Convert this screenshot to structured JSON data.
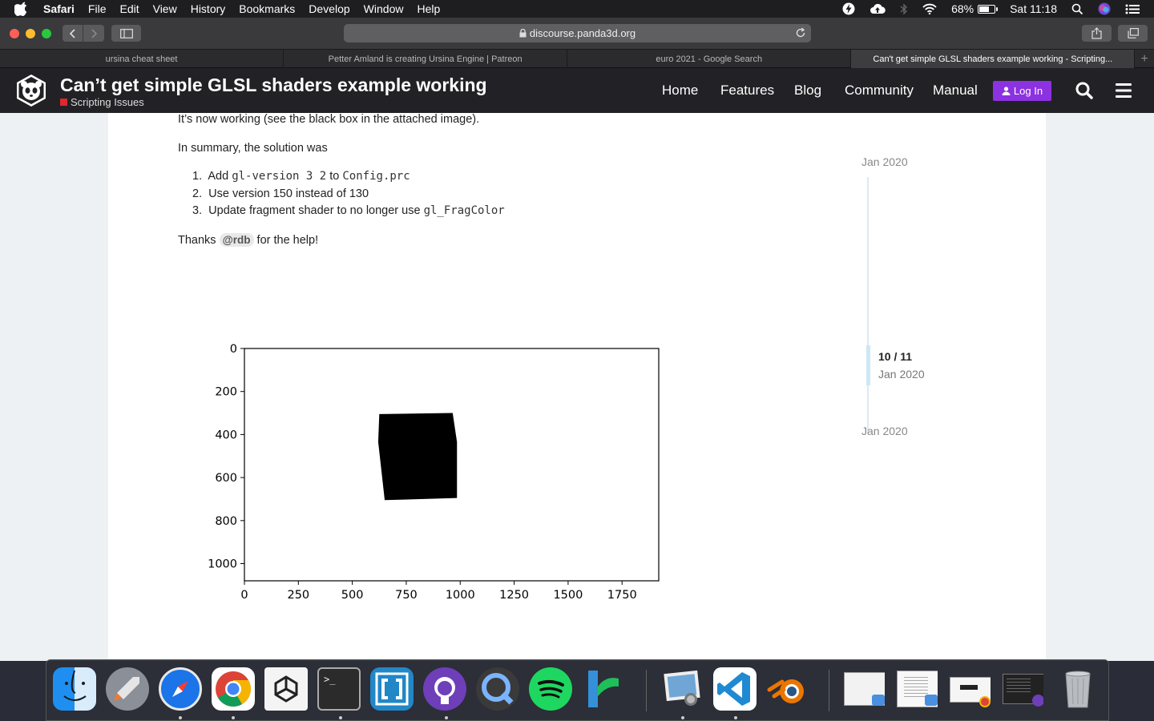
{
  "menubar": {
    "app": "Safari",
    "items": [
      "File",
      "Edit",
      "View",
      "History",
      "Bookmarks",
      "Develop",
      "Window",
      "Help"
    ],
    "battery": "68%",
    "clock": "Sat 11:18"
  },
  "toolbar": {
    "url": "discourse.panda3d.org"
  },
  "tabs": [
    {
      "label": "ursina cheat sheet"
    },
    {
      "label": "Petter Amland is creating Ursina Engine | Patreon"
    },
    {
      "label": "euro 2021 - Google Search"
    },
    {
      "label": "Can't get simple GLSL shaders example working - Scripting..."
    }
  ],
  "header": {
    "title": "Can’t get simple GLSL shaders example working",
    "category": "Scripting Issues",
    "category_color": "#e0262f",
    "nav": [
      "Home",
      "Features",
      "Blog",
      "Community",
      "Manual"
    ],
    "login": "Log In",
    "login_color": "#8c32e0"
  },
  "post": {
    "intro": "It’s now working (see the black box in the attached image).",
    "summary": "In summary, the solution was",
    "steps": {
      "s1_prefix": "Add ",
      "s1_code1": "gl-version 3 2",
      "s1_mid": " to ",
      "s1_code2": "Config.prc",
      "s2": "Use version 150 instead of 130",
      "s3_prefix": "Update fragment shader to no longer use ",
      "s3_code": "gl_FragColor"
    },
    "thanks_prefix": "Thanks ",
    "mention": "@rdb",
    "thanks_suffix": " for the help!"
  },
  "timeline": {
    "start": "Jan 2020",
    "position": "10 / 11",
    "position_date": "Jan 2020",
    "end": "Jan 2020"
  },
  "chart_data": {
    "type": "scatter",
    "title": "",
    "xlabel": "",
    "ylabel": "",
    "xlim": [
      0,
      1920
    ],
    "ylim": [
      1080,
      0
    ],
    "xticks": [
      0,
      250,
      500,
      750,
      1000,
      1250,
      1500,
      1750
    ],
    "yticks": [
      0,
      200,
      400,
      600,
      800,
      1000
    ],
    "shape_polygon": [
      [
        625,
        305
      ],
      [
        965,
        300
      ],
      [
        985,
        435
      ],
      [
        985,
        695
      ],
      [
        650,
        705
      ],
      [
        620,
        435
      ]
    ],
    "shape_color": "#000000"
  },
  "dock": {
    "apps": [
      "finder-icon",
      "launchpad-icon",
      "safari-icon",
      "chrome-icon",
      "unity-icon",
      "terminal-icon",
      "brackets-icon",
      "github-desktop-icon",
      "quicktime-icon",
      "spotify-icon",
      "app-icon",
      "preview-icon",
      "vscode-icon",
      "blender-icon",
      "window-thumb-icon",
      "window-thumb-icon",
      "window-thumb-icon",
      "window-thumb-icon",
      "trash-icon"
    ]
  }
}
